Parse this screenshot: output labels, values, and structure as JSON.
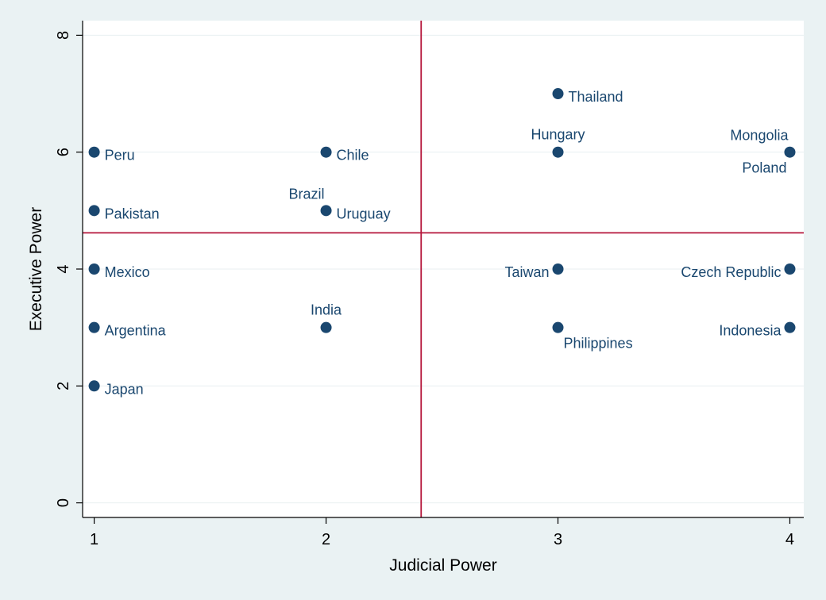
{
  "colors": {
    "background": "#eaf2f3",
    "plot_background": "#ffffff",
    "marker": "#1a476f",
    "label": "#1a476f",
    "reference_line": "#b5163b",
    "axis": "#000000",
    "grid": "#e8eff1"
  },
  "chart_data": {
    "type": "scatter",
    "title": "",
    "xlabel": "Judicial Power",
    "ylabel": "Executive Power",
    "xlim": [
      0.95,
      4.06
    ],
    "ylim": [
      -0.25,
      8.25
    ],
    "xticks": [
      1,
      2,
      3,
      4
    ],
    "yticks": [
      0,
      2,
      4,
      6,
      8
    ],
    "grid": true,
    "legend": "none",
    "reference_lines": {
      "x": 2.41,
      "y": 4.62
    },
    "points": [
      {
        "label": "Peru",
        "x": 1,
        "y": 6,
        "label_pos": "right"
      },
      {
        "label": "Pakistan",
        "x": 1,
        "y": 5,
        "label_pos": "right"
      },
      {
        "label": "Mexico",
        "x": 1,
        "y": 4,
        "label_pos": "right"
      },
      {
        "label": "Argentina",
        "x": 1,
        "y": 3,
        "label_pos": "right"
      },
      {
        "label": "Japan",
        "x": 1,
        "y": 2,
        "label_pos": "right"
      },
      {
        "label": "Chile",
        "x": 2,
        "y": 6,
        "label_pos": "right"
      },
      {
        "label": "Brazil",
        "x": 2,
        "y": 5,
        "label_pos": "above-left"
      },
      {
        "label": "Uruguay",
        "x": 2,
        "y": 5,
        "label_pos": "right"
      },
      {
        "label": "India",
        "x": 2,
        "y": 3,
        "label_pos": "above"
      },
      {
        "label": "Thailand",
        "x": 3,
        "y": 7,
        "label_pos": "right"
      },
      {
        "label": "Hungary",
        "x": 3,
        "y": 6,
        "label_pos": "above"
      },
      {
        "label": "Taiwan",
        "x": 3,
        "y": 4,
        "label_pos": "left"
      },
      {
        "label": "Philippines",
        "x": 3,
        "y": 3,
        "label_pos": "below-right"
      },
      {
        "label": "Mongolia",
        "x": 4,
        "y": 6,
        "label_pos": "above-left"
      },
      {
        "label": "Poland",
        "x": 4,
        "y": 6,
        "label_pos": "below-left"
      },
      {
        "label": "Czech Republic",
        "x": 4,
        "y": 4,
        "label_pos": "left"
      },
      {
        "label": "Indonesia",
        "x": 4,
        "y": 3,
        "label_pos": "left"
      }
    ]
  }
}
